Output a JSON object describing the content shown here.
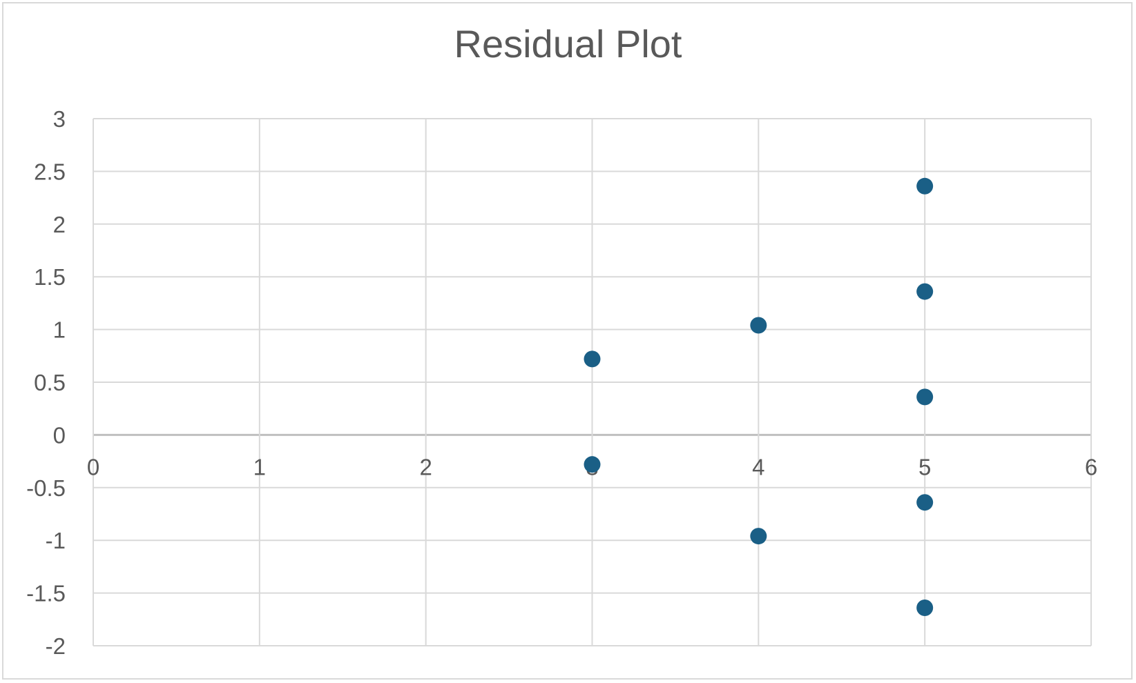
{
  "chart_data": {
    "type": "scatter",
    "title": "Residual Plot",
    "xlabel": "",
    "ylabel": "",
    "xlim": [
      0,
      6
    ],
    "ylim": [
      -2,
      3
    ],
    "x_ticks": [
      0,
      1,
      2,
      3,
      4,
      5,
      6
    ],
    "y_ticks": [
      3,
      2.5,
      2,
      1.5,
      1,
      0.5,
      0,
      -0.5,
      -1,
      -1.5,
      -2
    ],
    "x_tick_labels": [
      "0",
      "1",
      "2",
      "3",
      "4",
      "5",
      "6"
    ],
    "y_tick_labels": [
      "3",
      "2.5",
      "2",
      "1.5",
      "1",
      "0.5",
      "0",
      "-0.5",
      "-1",
      "-1.5",
      "-2"
    ],
    "grid": true,
    "legend": "none",
    "marker_color": "#1a5f86",
    "series": [
      {
        "points": [
          {
            "x": 3,
            "y": 0.72
          },
          {
            "x": 3,
            "y": -0.28
          },
          {
            "x": 4,
            "y": 1.04
          },
          {
            "x": 4,
            "y": -0.96
          },
          {
            "x": 5,
            "y": 2.36
          },
          {
            "x": 5,
            "y": 1.36
          },
          {
            "x": 5,
            "y": 0.36
          },
          {
            "x": 5,
            "y": -0.64
          },
          {
            "x": 5,
            "y": -1.64
          }
        ]
      }
    ]
  }
}
